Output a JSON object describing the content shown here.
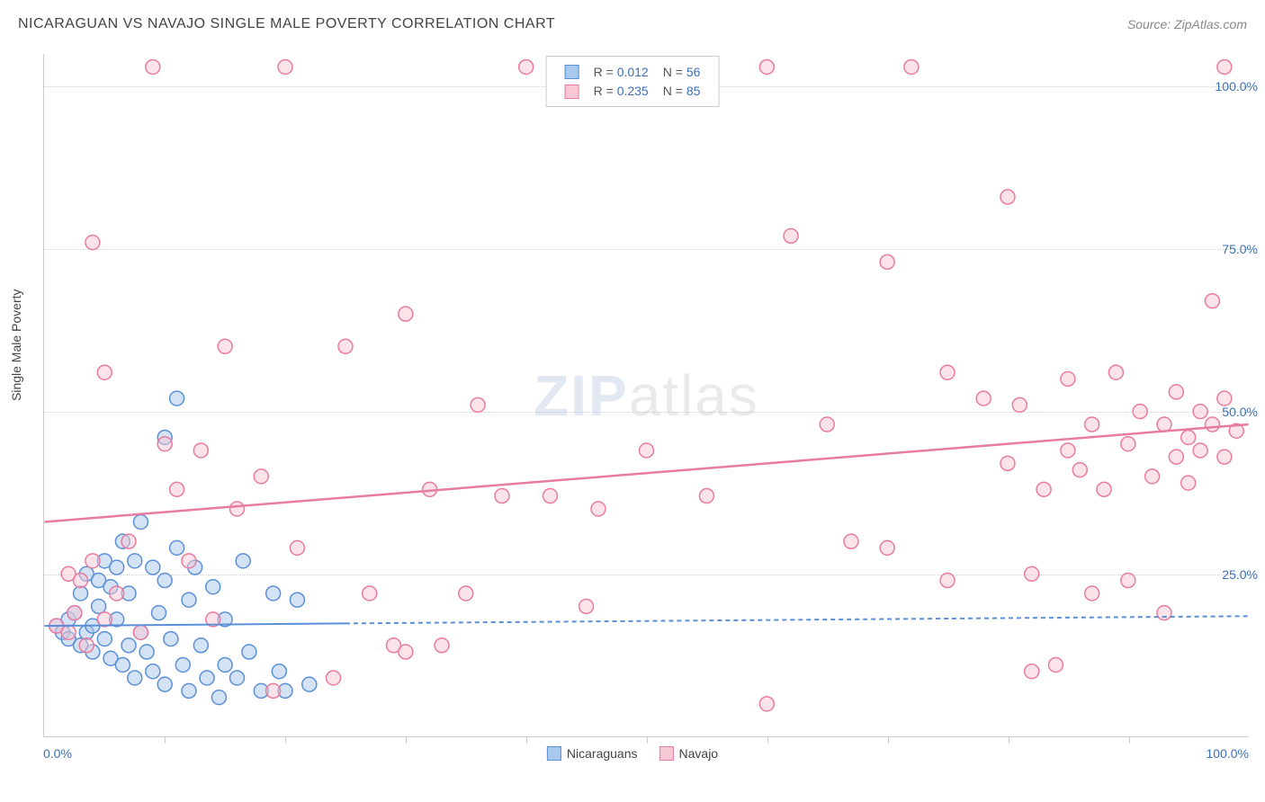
{
  "title": "NICARAGUAN VS NAVAJO SINGLE MALE POVERTY CORRELATION CHART",
  "source": "Source: ZipAtlas.com",
  "ylabel": "Single Male Poverty",
  "watermark_zip": "ZIP",
  "watermark_atlas": "atlas",
  "chart": {
    "type": "scatter",
    "xlim": [
      0,
      100
    ],
    "ylim": [
      0,
      105
    ],
    "xtick_step": 10,
    "ytick_labels": [
      "25.0%",
      "50.0%",
      "75.0%",
      "100.0%"
    ],
    "ytick_values": [
      25,
      50,
      75,
      100
    ],
    "xaxis_label_left": "0.0%",
    "xaxis_label_right": "100.0%",
    "background_color": "#ffffff",
    "grid_color": "#d0d0d0",
    "marker_radius": 8,
    "marker_stroke_width": 1.5,
    "series": [
      {
        "name": "Nicaraguans",
        "color_fill": "#a8c8ec",
        "color_stroke": "#5b8fd6",
        "fill_opacity": 0.5,
        "trend": {
          "y_start": 17,
          "y_end": 18.5,
          "solid_to_x": 25,
          "line_width": 2,
          "dash": "5,4"
        },
        "points": [
          [
            1,
            17
          ],
          [
            1.5,
            16
          ],
          [
            2,
            18
          ],
          [
            2,
            15
          ],
          [
            2.5,
            19
          ],
          [
            3,
            14
          ],
          [
            3,
            22
          ],
          [
            3.5,
            16
          ],
          [
            3.5,
            25
          ],
          [
            4,
            13
          ],
          [
            4,
            17
          ],
          [
            4.5,
            20
          ],
          [
            4.5,
            24
          ],
          [
            5,
            15
          ],
          [
            5,
            27
          ],
          [
            5.5,
            12
          ],
          [
            5.5,
            23
          ],
          [
            6,
            18
          ],
          [
            6,
            26
          ],
          [
            6.5,
            11
          ],
          [
            6.5,
            30
          ],
          [
            7,
            14
          ],
          [
            7,
            22
          ],
          [
            7.5,
            9
          ],
          [
            7.5,
            27
          ],
          [
            8,
            16
          ],
          [
            8,
            33
          ],
          [
            8.5,
            13
          ],
          [
            9,
            26
          ],
          [
            9,
            10
          ],
          [
            9.5,
            19
          ],
          [
            10,
            8
          ],
          [
            10,
            24
          ],
          [
            10,
            46
          ],
          [
            10.5,
            15
          ],
          [
            11,
            29
          ],
          [
            11,
            52
          ],
          [
            11.5,
            11
          ],
          [
            12,
            21
          ],
          [
            12,
            7
          ],
          [
            12.5,
            26
          ],
          [
            13,
            14
          ],
          [
            13.5,
            9
          ],
          [
            14,
            23
          ],
          [
            14.5,
            6
          ],
          [
            15,
            18
          ],
          [
            15,
            11
          ],
          [
            16,
            9
          ],
          [
            16.5,
            27
          ],
          [
            17,
            13
          ],
          [
            18,
            7
          ],
          [
            19,
            22
          ],
          [
            19.5,
            10
          ],
          [
            20,
            7
          ],
          [
            21,
            21
          ],
          [
            22,
            8
          ]
        ]
      },
      {
        "name": "Navajo",
        "color_fill": "#f7c8d4",
        "color_stroke": "#e87ba0",
        "fill_opacity": 0.5,
        "trend": {
          "y_start": 33,
          "y_end": 48,
          "solid_to_x": 100,
          "line_width": 2.5
        },
        "points": [
          [
            1,
            17
          ],
          [
            2,
            16
          ],
          [
            2,
            25
          ],
          [
            2.5,
            19
          ],
          [
            3,
            24
          ],
          [
            3.5,
            14
          ],
          [
            4,
            27
          ],
          [
            4,
            76
          ],
          [
            5,
            18
          ],
          [
            5,
            56
          ],
          [
            6,
            22
          ],
          [
            7,
            30
          ],
          [
            8,
            16
          ],
          [
            9,
            103
          ],
          [
            10,
            45
          ],
          [
            11,
            38
          ],
          [
            12,
            27
          ],
          [
            13,
            44
          ],
          [
            14,
            18
          ],
          [
            15,
            60
          ],
          [
            16,
            35
          ],
          [
            18,
            40
          ],
          [
            19,
            7
          ],
          [
            20,
            103
          ],
          [
            21,
            29
          ],
          [
            24,
            9
          ],
          [
            25,
            60
          ],
          [
            27,
            22
          ],
          [
            29,
            14
          ],
          [
            30,
            65
          ],
          [
            30,
            13
          ],
          [
            32,
            38
          ],
          [
            33,
            14
          ],
          [
            35,
            22
          ],
          [
            36,
            51
          ],
          [
            38,
            37
          ],
          [
            40,
            103
          ],
          [
            42,
            37
          ],
          [
            45,
            20
          ],
          [
            46,
            35
          ],
          [
            50,
            44
          ],
          [
            55,
            37
          ],
          [
            60,
            103
          ],
          [
            60,
            5
          ],
          [
            62,
            77
          ],
          [
            65,
            48
          ],
          [
            67,
            30
          ],
          [
            70,
            29
          ],
          [
            70,
            73
          ],
          [
            72,
            103
          ],
          [
            75,
            56
          ],
          [
            75,
            24
          ],
          [
            78,
            52
          ],
          [
            80,
            83
          ],
          [
            80,
            42
          ],
          [
            81,
            51
          ],
          [
            82,
            10
          ],
          [
            82,
            25
          ],
          [
            83,
            38
          ],
          [
            84,
            11
          ],
          [
            85,
            55
          ],
          [
            85,
            44
          ],
          [
            86,
            41
          ],
          [
            87,
            22
          ],
          [
            87,
            48
          ],
          [
            88,
            38
          ],
          [
            89,
            56
          ],
          [
            90,
            45
          ],
          [
            90,
            24
          ],
          [
            91,
            50
          ],
          [
            92,
            40
          ],
          [
            93,
            48
          ],
          [
            93,
            19
          ],
          [
            94,
            53
          ],
          [
            94,
            43
          ],
          [
            95,
            46
          ],
          [
            95,
            39
          ],
          [
            96,
            50
          ],
          [
            96,
            44
          ],
          [
            97,
            67
          ],
          [
            97,
            48
          ],
          [
            98,
            43
          ],
          [
            98,
            52
          ],
          [
            98,
            103
          ],
          [
            99,
            47
          ]
        ]
      }
    ]
  },
  "legend_top": {
    "rows": [
      {
        "swatch_fill": "#a8c8ec",
        "swatch_stroke": "#5b8fd6",
        "r": "0.012",
        "n": "56"
      },
      {
        "swatch_fill": "#f7c8d4",
        "swatch_stroke": "#e87ba0",
        "r": "0.235",
        "n": "85"
      }
    ],
    "r_label": "R =",
    "n_label": "N ="
  },
  "legend_bottom": [
    {
      "swatch_fill": "#a8c8ec",
      "swatch_stroke": "#5b8fd6",
      "label": "Nicaraguans"
    },
    {
      "swatch_fill": "#f7c8d4",
      "swatch_stroke": "#e87ba0",
      "label": "Navajo"
    }
  ]
}
